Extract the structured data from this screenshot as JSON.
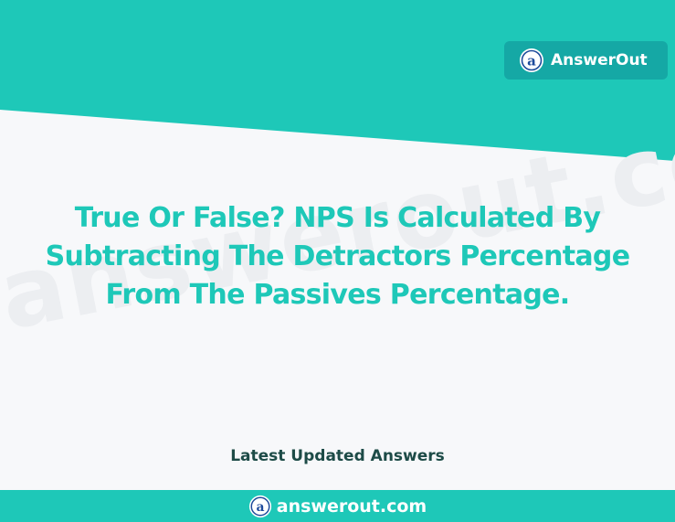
{
  "brand": {
    "name": "AnswerOut",
    "logo_icon": "answerout-a-logo-icon"
  },
  "watermark": "answerout.com",
  "question": {
    "line1": "True Or False? NPS Is Calculated By",
    "line2": "Subtracting The Detractors Percentage",
    "line3": "From The Passives Percentage."
  },
  "section_label": "Latest Updated Answers",
  "footer": {
    "site": "answerout.com"
  },
  "colors": {
    "teal": "#1ec8b8",
    "badge": "#15a8a5",
    "dark_text": "#1d4b47",
    "background": "#f7f8fa"
  }
}
